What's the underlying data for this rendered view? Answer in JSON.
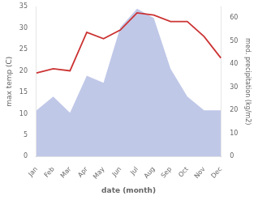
{
  "chart_data": {
    "type": "line",
    "categories": [
      "Jan",
      "Feb",
      "Mar",
      "Apr",
      "May",
      "Jun",
      "Jul",
      "Aug",
      "Sep",
      "Oct",
      "Nov",
      "Dec"
    ],
    "series": [
      {
        "type": "line",
        "color": "#cc3333",
        "values": [
          19.5,
          20.5,
          20.0,
          29.0,
          27.5,
          29.5,
          33.5,
          33.0,
          31.5,
          31.5,
          28.0,
          23.0
        ]
      },
      {
        "type": "area",
        "color": "#c0c8e8",
        "axis": "y2",
        "values": [
          20,
          26,
          19,
          35,
          32,
          56,
          64,
          60,
          38,
          26,
          20,
          20
        ]
      }
    ],
    "xlabel": "date (month)",
    "ylabel": "max temp (C)",
    "y2label": "med. precipitation (kg/m2)",
    "ylim": [
      0,
      35
    ],
    "yticks": [
      0,
      5,
      10,
      15,
      20,
      25,
      30,
      35
    ],
    "y2lim": [
      0,
      65
    ],
    "y2ticks": [
      0,
      10,
      20,
      30,
      40,
      50,
      60
    ],
    "grid": false
  }
}
